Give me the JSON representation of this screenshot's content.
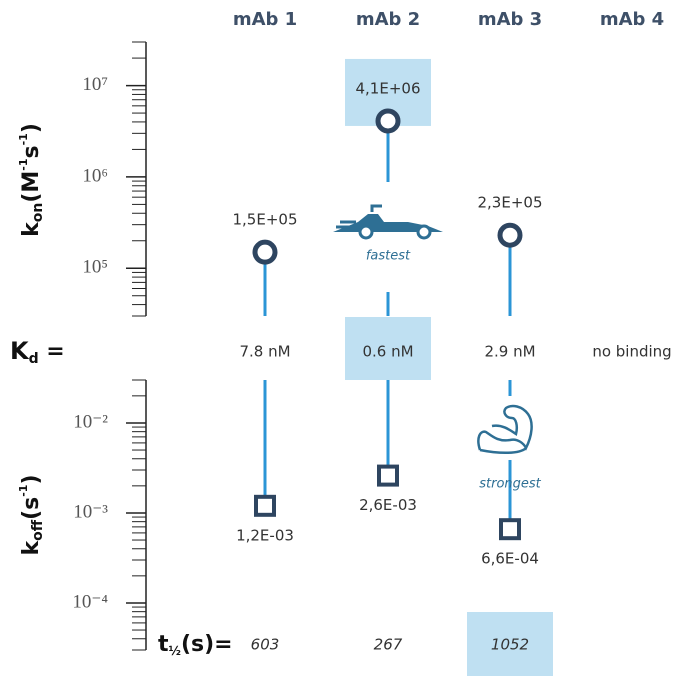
{
  "chart_data": [
    {
      "type": "lollipop",
      "marker": "circle",
      "y_label": [
        "k",
        "on",
        "(M",
        "-1",
        "s",
        "-1",
        ")"
      ],
      "categories": [
        "mAb 1",
        "mAb 2",
        "mAb 3",
        "mAb 4"
      ],
      "values": [
        150000,
        4100000,
        230000,
        null
      ],
      "value_labels": [
        "1,5E+05",
        "4,1E+06",
        "2,3E+05",
        null
      ],
      "ylim": [
        30000,
        30000000
      ],
      "log_scale": true,
      "minor_ticks": true,
      "yticks": [
        {
          "value": 100000,
          "label": "10⁵"
        },
        {
          "value": 1000000,
          "label": "10⁶"
        },
        {
          "value": 10000000,
          "label": "10⁷"
        }
      ],
      "color": "#2b95d6",
      "marker_color": "#2e4560",
      "highlight": 1,
      "annotation": {
        "text": "fastest",
        "index": 1
      }
    },
    {
      "type": "lollipop",
      "marker": "square",
      "y_label": [
        "k",
        "off",
        "(s",
        "-1",
        ")"
      ],
      "values": [
        0.0012,
        0.0026,
        0.00066,
        null
      ],
      "value_labels": [
        "1,2E-03",
        "2,6E-03",
        "6,6E-04",
        null
      ],
      "ylim": [
        3e-05,
        0.03
      ],
      "log_scale": true,
      "minor_ticks": true,
      "yticks": [
        {
          "value": 0.0001,
          "label": "10⁻⁴"
        },
        {
          "value": 0.001,
          "label": "10⁻³"
        },
        {
          "value": 0.01,
          "label": "10⁻²"
        }
      ],
      "color": "#2b95d6",
      "marker_color": "#2e4560",
      "annotation": {
        "text": "strongest",
        "index": 2
      }
    }
  ],
  "kd": {
    "label": [
      "K",
      "d",
      " ="
    ],
    "values": [
      "7.8 nM",
      "0.6 nM",
      "2.9 nM",
      "no binding"
    ],
    "highlight": 1
  },
  "t_half": {
    "label": [
      "t",
      "½",
      "(s)="
    ],
    "values": [
      603,
      267,
      1052
    ],
    "highlight": 2
  }
}
